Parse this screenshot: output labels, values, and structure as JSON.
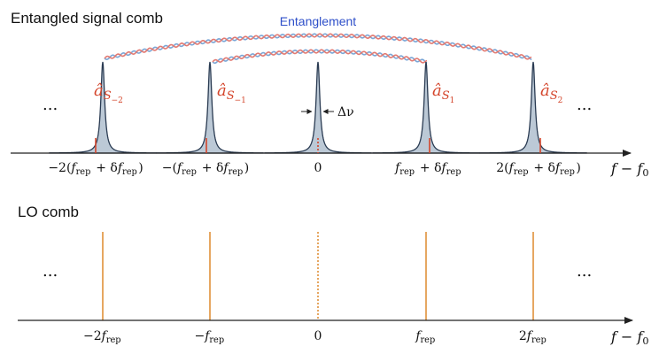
{
  "panels": {
    "signal": {
      "title": "Entangled signal comb",
      "entanglement_label": "Entanglement",
      "linewidth_label": "Δν",
      "ellipsis": "...",
      "mode_labels": [
        {
          "base": "â",
          "sub": "S",
          "subsub": "−2"
        },
        {
          "base": "â",
          "sub": "S",
          "subsub": "−1"
        },
        {
          "base": "â",
          "sub": "S",
          "subsub": "1"
        },
        {
          "base": "â",
          "sub": "S",
          "subsub": "2"
        }
      ],
      "tick_labels": [
        "−2(f_rep + δf_rep)",
        "−(f_rep + δf_rep)",
        "0",
        "f_rep + δf_rep",
        "2(f_rep + δf_rep)"
      ],
      "axis_label": "f − f₀"
    },
    "lo": {
      "title": "LO comb",
      "ellipsis": "...",
      "tick_labels": [
        "−2f_rep",
        "−f_rep",
        "0",
        "f_rep",
        "2f_rep"
      ],
      "axis_label": "f − f₀"
    }
  },
  "colors": {
    "peak_fill": "#bcc9d6",
    "peak_stroke": "#2a3b52",
    "mode_label": "#d4452b",
    "entanglement_text": "#2e4fc9",
    "wave_blue": "#7aa6d6",
    "wave_red": "#e27a72",
    "lo_line": "#e0913a",
    "axis": "#222222"
  }
}
